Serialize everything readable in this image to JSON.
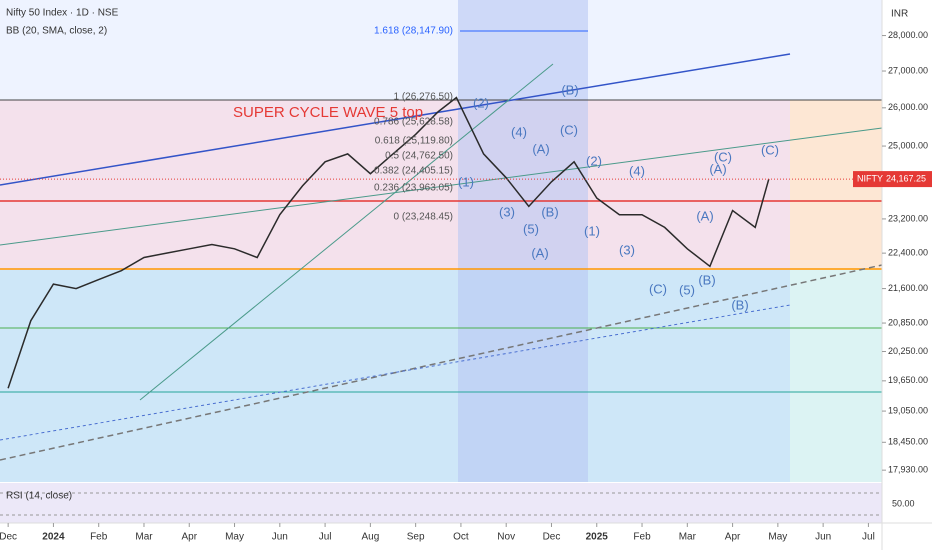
{
  "chart_data": {
    "type": "line",
    "title": "Nifty 50 Index · 1D · NSE",
    "subtitle": "BB (20, SMA, close, 2)",
    "currency": "INR",
    "symbol": "NIFTY",
    "last": {
      "value": 24167.25,
      "label": "24,167.25"
    },
    "log_scale": true,
    "ylim": [
      17750,
      29040
    ],
    "yticks": [
      {
        "value": 28000,
        "label": "28,000.00"
      },
      {
        "value": 27000,
        "label": "27,000.00"
      },
      {
        "value": 26000,
        "label": "26,000.00"
      },
      {
        "value": 25000,
        "label": "25,000.00"
      },
      {
        "value": 23200,
        "label": "23,200.00"
      },
      {
        "value": 22400,
        "label": "22,400.00"
      },
      {
        "value": 21600,
        "label": "21,600.00"
      },
      {
        "value": 20850,
        "label": "20,850.00"
      },
      {
        "value": 20250,
        "label": "20,250.00"
      },
      {
        "value": 19650,
        "label": "19,650.00"
      },
      {
        "value": 19050,
        "label": "19,050.00"
      },
      {
        "value": 18450,
        "label": "18,450.00"
      },
      {
        "value": 17930,
        "label": "17,930.00"
      }
    ],
    "xlim": [
      -0.18,
      19.3
    ],
    "xticks": [
      {
        "value": 0,
        "label": "Dec"
      },
      {
        "value": 1,
        "label": "2024"
      },
      {
        "value": 2,
        "label": "Feb"
      },
      {
        "value": 3,
        "label": "Mar"
      },
      {
        "value": 4,
        "label": "Apr"
      },
      {
        "value": 5,
        "label": "May"
      },
      {
        "value": 6,
        "label": "Jun"
      },
      {
        "value": 7,
        "label": "Jul"
      },
      {
        "value": 8,
        "label": "Aug"
      },
      {
        "value": 9,
        "label": "Sep"
      },
      {
        "value": 10,
        "label": "Oct"
      },
      {
        "value": 11,
        "label": "Nov"
      },
      {
        "value": 12,
        "label": "Dec"
      },
      {
        "value": 13,
        "label": "2025"
      },
      {
        "value": 14,
        "label": "Feb"
      },
      {
        "value": 15,
        "label": "Mar"
      },
      {
        "value": 16,
        "label": "Apr"
      },
      {
        "value": 17,
        "label": "May"
      },
      {
        "value": 18,
        "label": "Jun"
      },
      {
        "value": 19,
        "label": "Jul"
      }
    ],
    "series": [
      {
        "name": "NIFTY",
        "color": "#2b2b2b",
        "x": [
          0,
          0.5,
          1,
          1.5,
          2,
          2.5,
          3,
          3.5,
          4,
          4.5,
          5,
          5.5,
          6,
          6.5,
          7,
          7.5,
          8,
          8.5,
          9,
          9.5,
          9.9,
          10.5,
          11,
          11.5,
          12,
          12.5,
          13,
          13.5,
          14,
          14.5,
          15,
          15.5,
          16,
          16.5,
          16.8
        ],
        "values": [
          19500,
          20900,
          21700,
          21600,
          21800,
          22000,
          22300,
          22400,
          22500,
          22600,
          22500,
          22300,
          23300,
          24000,
          24600,
          24800,
          24300,
          24800,
          25300,
          25900,
          26277,
          24800,
          24200,
          23500,
          24100,
          24600,
          23700,
          23300,
          23300,
          23000,
          22500,
          22100,
          23400,
          23000,
          24167
        ]
      }
    ],
    "rsi_label": "RSI (14, close)",
    "rsi_tick": {
      "value": 50,
      "label": "50.00"
    },
    "annotations": [
      "SUPER CYCLE WAVE 5 top",
      "1.618 (28,147.90)",
      "1 (26,276.50)",
      "0.786 (25,628.58)",
      "0.618 (25,119.80)",
      "0.5 (24,762.50)",
      "0.382 (24,405.15)",
      "0.236 (23,963.05)",
      "0 (23,248.45)",
      "(1)",
      "(2)",
      "(3)",
      "(4)",
      "(5)",
      "(A)",
      "(B)",
      "(C)",
      "(B)",
      "(A)",
      "(2)",
      "(1)",
      "(4)",
      "(3)",
      "(C)",
      "(5)",
      "(B)",
      "(A)",
      "(A)",
      "(C)",
      "(B)",
      "(C)"
    ]
  }
}
